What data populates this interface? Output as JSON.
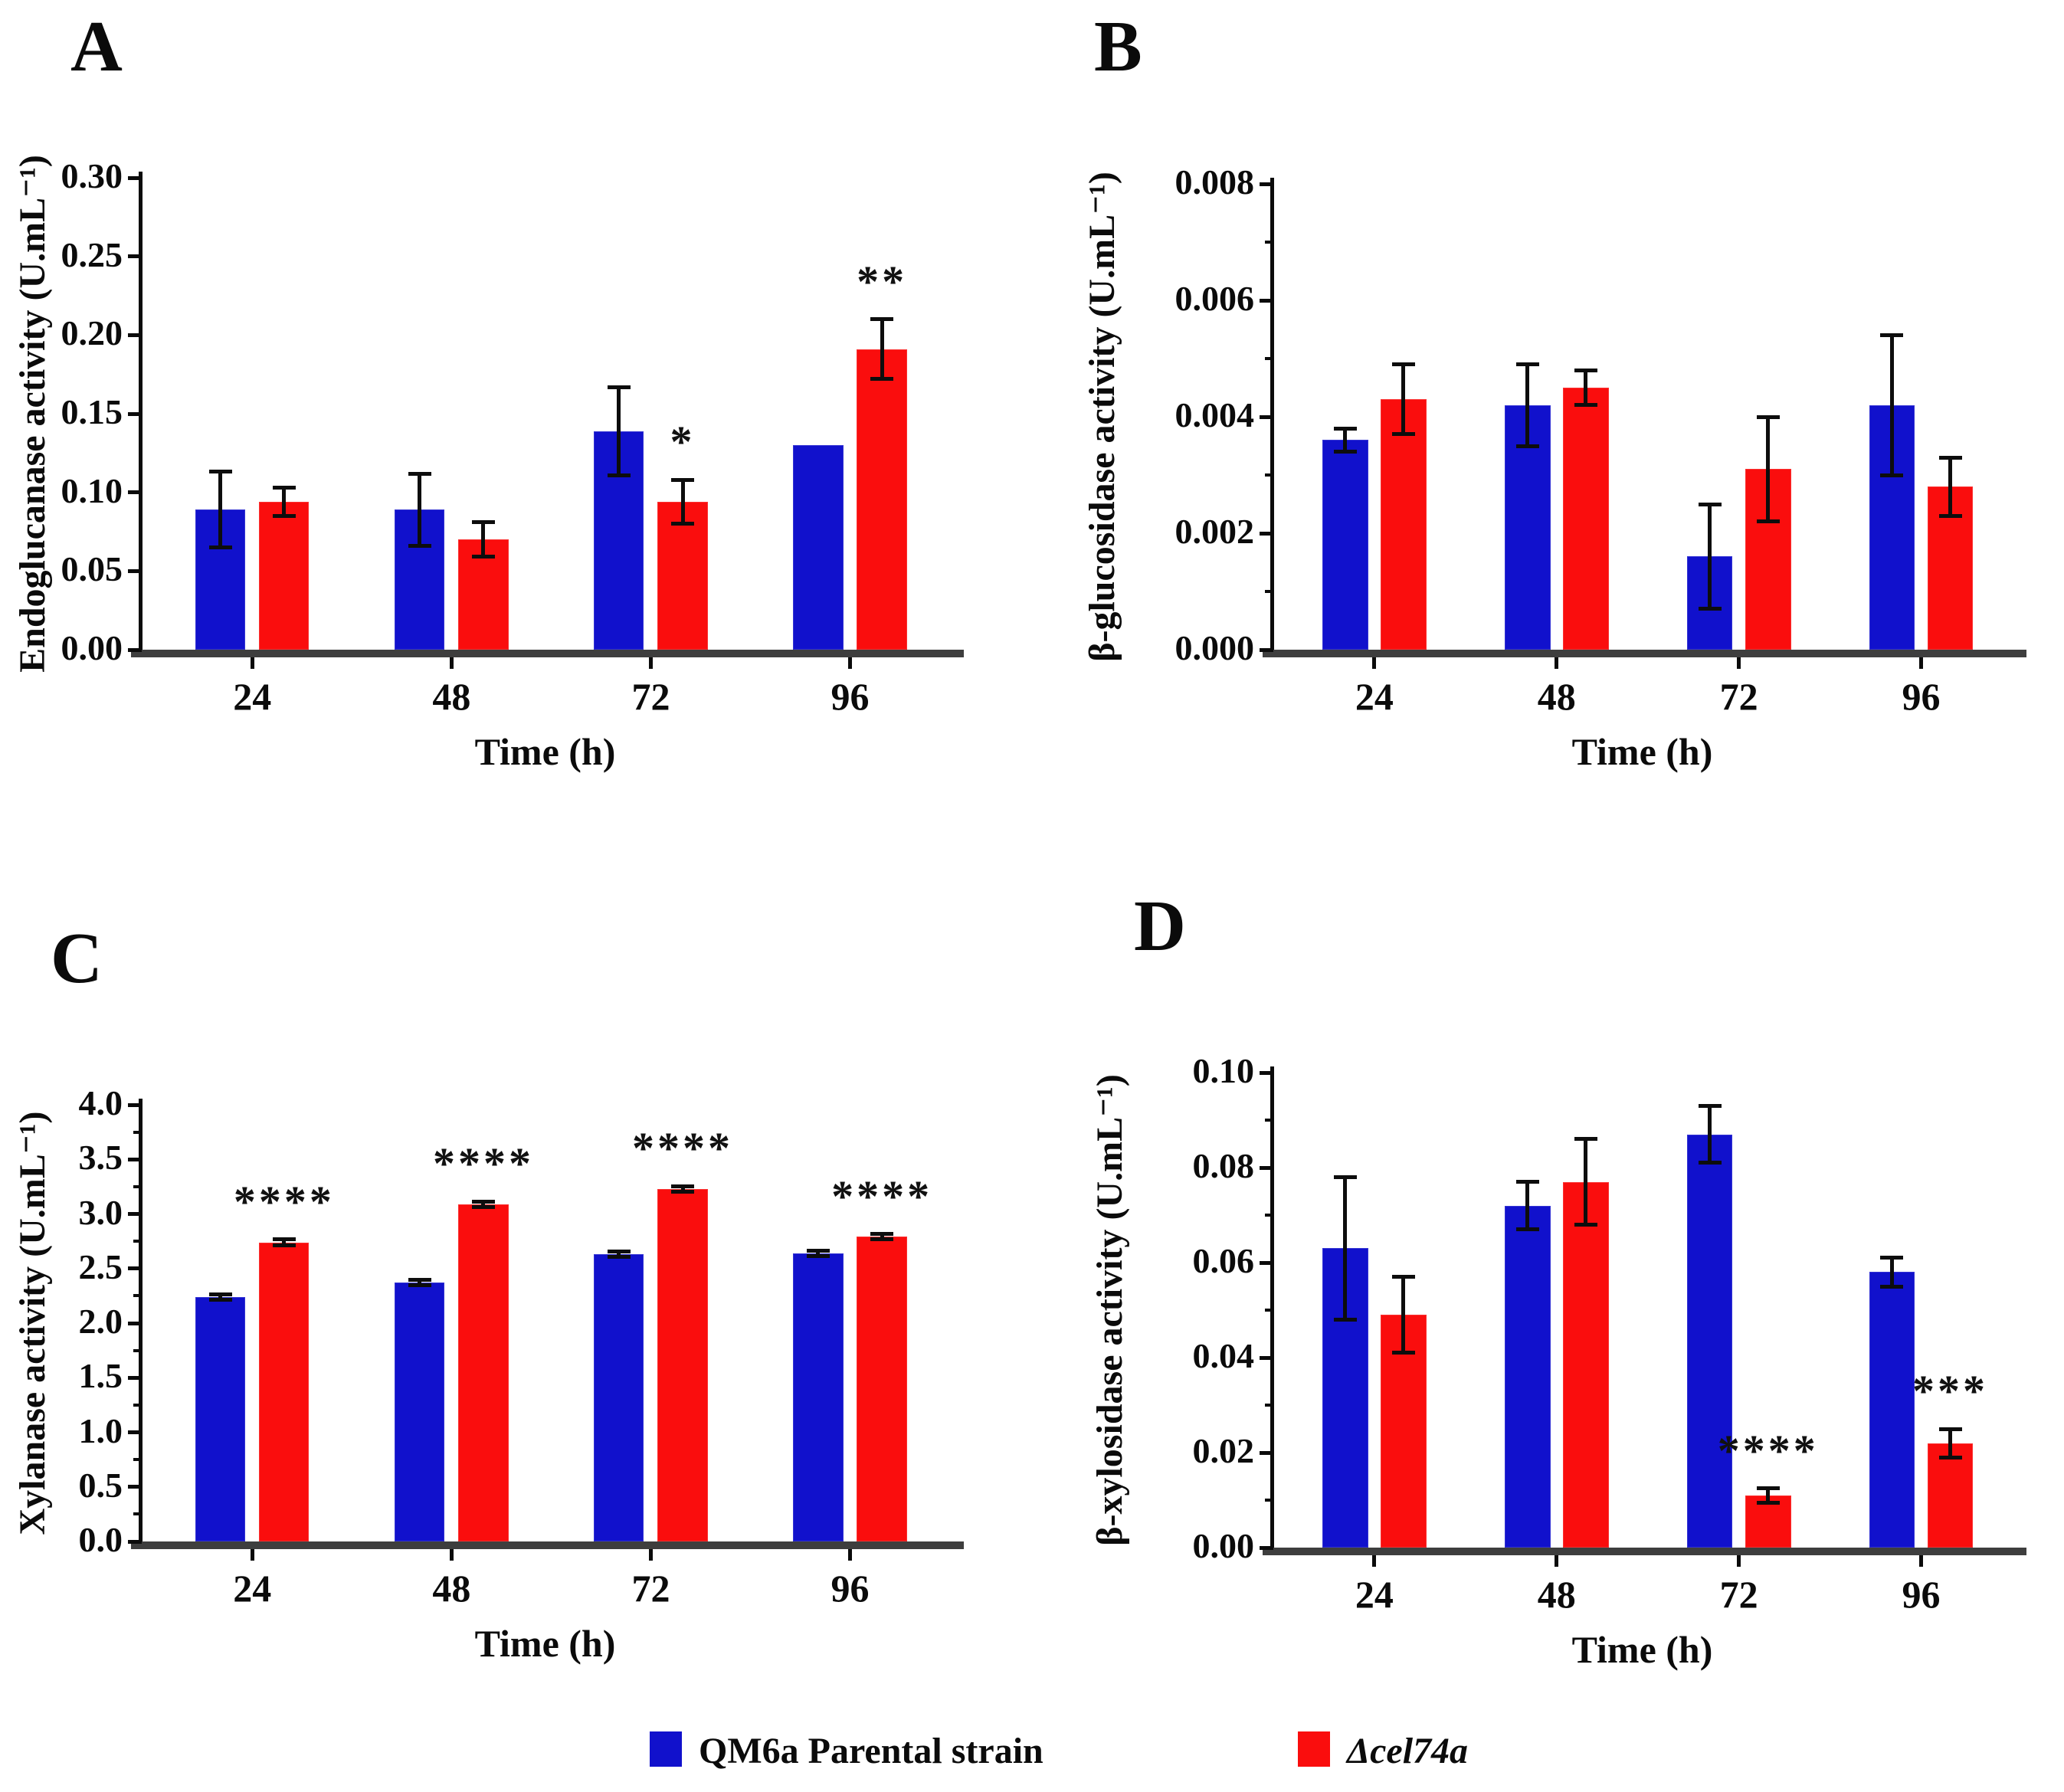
{
  "figure_legend": {
    "items": [
      {
        "label": "QM6a Parental strain",
        "color": "#1111cc",
        "italic": false
      },
      {
        "label": "Δcel74a",
        "color": "#fa0d0d",
        "italic": true
      }
    ]
  },
  "chart_data": [
    {
      "panel": "A",
      "type": "bar",
      "title": "",
      "ylabel": "Endoglucanase activity (U.mL⁻¹)",
      "xlabel": "Time (h)",
      "categories": [
        "24",
        "48",
        "72",
        "96"
      ],
      "ylim": [
        0,
        0.3
      ],
      "ytick_labels": [
        "0.00",
        "0.05",
        "0.10",
        "0.15",
        "0.20",
        "0.25",
        "0.30"
      ],
      "minor_ticks": false,
      "grid": false,
      "legend_position": "bottom",
      "series": [
        {
          "name": "QM6a Parental strain",
          "color": "#1111cc",
          "values": [
            0.089,
            0.089,
            0.139,
            0.13
          ],
          "errors": [
            0.024,
            0.023,
            0.028,
            0
          ]
        },
        {
          "name": "Δcel74a",
          "color": "#fa0d0d",
          "values": [
            0.094,
            0.07,
            0.094,
            0.191
          ],
          "errors": [
            0.009,
            0.011,
            0.014,
            0.019
          ]
        }
      ],
      "significance": [
        {
          "category_index": 2,
          "series_index": 1,
          "label": "*"
        },
        {
          "category_index": 3,
          "series_index": 1,
          "label": "**"
        }
      ]
    },
    {
      "panel": "B",
      "type": "bar",
      "title": "",
      "ylabel": "β-glucosidase activity (U.mL⁻¹)",
      "xlabel": "Time (h)",
      "categories": [
        "24",
        "48",
        "72",
        "96"
      ],
      "ylim": [
        0,
        0.008
      ],
      "ytick_labels": [
        "0.000",
        "0.002",
        "0.004",
        "0.006",
        "0.008"
      ],
      "minor_ticks": true,
      "grid": false,
      "legend_position": "bottom",
      "series": [
        {
          "name": "QM6a Parental strain",
          "color": "#1111cc",
          "values": [
            0.0036,
            0.0042,
            0.0016,
            0.0042
          ],
          "errors": [
            0.0002,
            0.0007,
            0.0009,
            0.0012
          ]
        },
        {
          "name": "Δcel74a",
          "color": "#fa0d0d",
          "values": [
            0.0043,
            0.0045,
            0.0031,
            0.0028
          ],
          "errors": [
            0.0006,
            0.0003,
            0.0009,
            0.0005
          ]
        }
      ],
      "significance": []
    },
    {
      "panel": "C",
      "type": "bar",
      "title": "",
      "ylabel": "Xylanase activity (U.mL⁻¹)",
      "xlabel": "Time (h)",
      "categories": [
        "24",
        "48",
        "72",
        "96"
      ],
      "ylim": [
        0,
        4.0
      ],
      "ytick_labels": [
        "0.0",
        "0.5",
        "1.0",
        "1.5",
        "2.0",
        "2.5",
        "3.0",
        "3.5",
        "4.0"
      ],
      "minor_ticks": true,
      "grid": false,
      "legend_position": "bottom",
      "series": [
        {
          "name": "QM6a Parental strain",
          "color": "#1111cc",
          "values": [
            2.24,
            2.37,
            2.63,
            2.64
          ],
          "errors": [
            0.025,
            0.025,
            0.025,
            0.025
          ]
        },
        {
          "name": "Δcel74a",
          "color": "#fa0d0d",
          "values": [
            2.74,
            3.09,
            3.23,
            2.79
          ],
          "errors": [
            0.025,
            0.025,
            0.025,
            0.025
          ]
        }
      ],
      "significance": [
        {
          "category_index": 0,
          "series_index": 1,
          "label": "****"
        },
        {
          "category_index": 1,
          "series_index": 1,
          "label": "****"
        },
        {
          "category_index": 2,
          "series_index": 1,
          "label": "****"
        },
        {
          "category_index": 3,
          "series_index": 1,
          "label": "****"
        }
      ]
    },
    {
      "panel": "D",
      "type": "bar",
      "title": "",
      "ylabel": "β-xylosidase activity (U.mL⁻¹)",
      "xlabel": "Time (h)",
      "categories": [
        "24",
        "48",
        "72",
        "96"
      ],
      "ylim": [
        0,
        0.1
      ],
      "ytick_labels": [
        "0.00",
        "0.02",
        "0.04",
        "0.06",
        "0.08",
        "0.10"
      ],
      "minor_ticks": true,
      "grid": false,
      "legend_position": "bottom",
      "series": [
        {
          "name": "QM6a Parental strain",
          "color": "#1111cc",
          "values": [
            0.063,
            0.072,
            0.087,
            0.058
          ],
          "errors": [
            0.015,
            0.005,
            0.006,
            0.003
          ]
        },
        {
          "name": "Δcel74a",
          "color": "#fa0d0d",
          "values": [
            0.049,
            0.077,
            0.011,
            0.022
          ],
          "errors": [
            0.008,
            0.009,
            0.0015,
            0.003
          ]
        }
      ],
      "significance": [
        {
          "category_index": 2,
          "series_index": 1,
          "label": "****"
        },
        {
          "category_index": 3,
          "series_index": 1,
          "label": "***"
        }
      ]
    }
  ]
}
